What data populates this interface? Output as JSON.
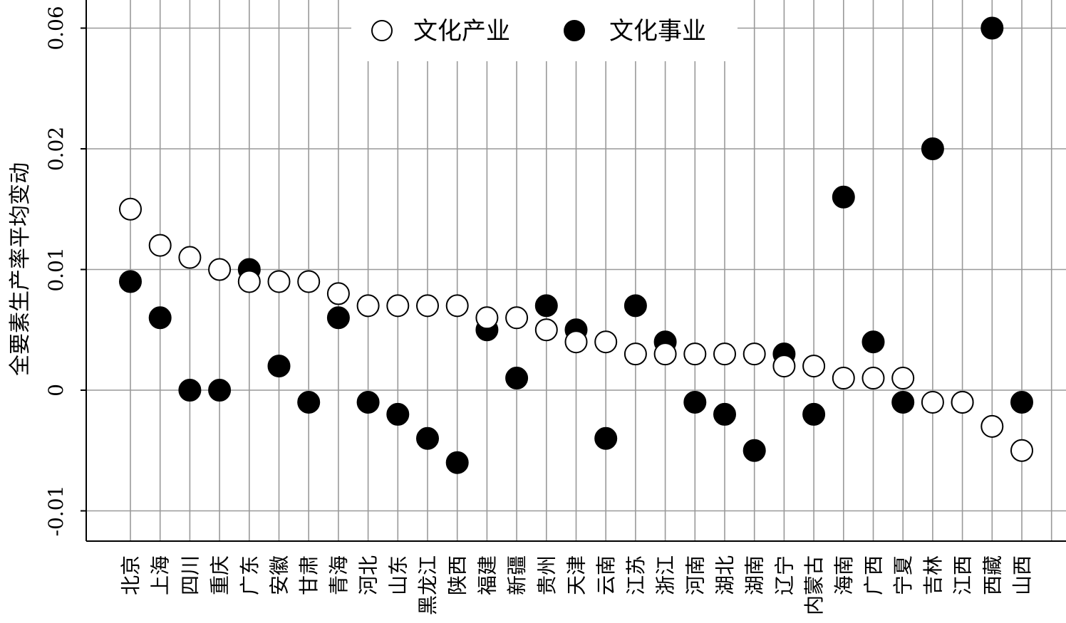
{
  "chart_data": {
    "type": "scatter",
    "title": "",
    "xlabel": "",
    "ylabel": "全要素生产率平均变动",
    "ylim": [
      -0.012,
      0.062
    ],
    "yticks": [
      {
        "value": -0.01,
        "label": "-0.01"
      },
      {
        "value": 0,
        "label": "0"
      },
      {
        "value": 0.01,
        "label": "0.01"
      },
      {
        "value": 0.02,
        "label": "0.02"
      },
      {
        "value": 0.06,
        "label": "0.06"
      }
    ],
    "axis_break": "y between 0.02 and 0.06",
    "grid": true,
    "legend_position": "top-center",
    "categories": [
      "北京",
      "上海",
      "四川",
      "重庆",
      "广东",
      "安徽",
      "甘肃",
      "青海",
      "河北",
      "山东",
      "黑龙江",
      "陕西",
      "福建",
      "新疆",
      "贵州",
      "天津",
      "云南",
      "江苏",
      "浙江",
      "河南",
      "湖北",
      "湖南",
      "辽宁",
      "内蒙古",
      "海南",
      "广西",
      "宁夏",
      "吉林",
      "江西",
      "西藏",
      "山西"
    ],
    "series": [
      {
        "name": "文化产业",
        "marker": "open-circle",
        "values": [
          0.015,
          0.012,
          0.011,
          0.01,
          0.009,
          0.009,
          0.009,
          0.008,
          0.007,
          0.007,
          0.007,
          0.007,
          0.006,
          0.006,
          0.005,
          0.004,
          0.004,
          0.003,
          0.003,
          0.003,
          0.003,
          0.003,
          0.002,
          0.002,
          0.001,
          0.001,
          0.001,
          -0.001,
          -0.001,
          -0.003,
          -0.005
        ]
      },
      {
        "name": "文化事业",
        "marker": "filled-circle",
        "values": [
          0.009,
          0.006,
          0.0,
          0.0,
          0.01,
          0.002,
          -0.001,
          0.006,
          -0.001,
          -0.002,
          -0.004,
          -0.006,
          0.005,
          0.001,
          0.007,
          0.005,
          -0.004,
          0.007,
          0.004,
          -0.001,
          -0.002,
          -0.005,
          0.003,
          -0.002,
          0.016,
          0.004,
          -0.001,
          0.02,
          -0.001,
          0.06,
          -0.001
        ]
      }
    ]
  }
}
